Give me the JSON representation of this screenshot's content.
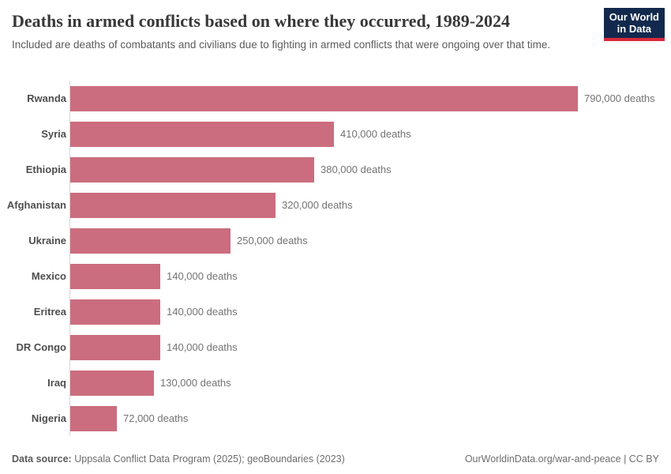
{
  "header": {
    "title": "Deaths in armed conflicts based on where they occurred, 1989-2024",
    "subtitle": "Included are deaths of combatants and civilians due to fighting in armed conflicts that were ongoing over that time."
  },
  "logo": {
    "line1": "Our World",
    "line2": "in Data"
  },
  "chart_data": {
    "type": "bar",
    "orientation": "horizontal",
    "title": "Deaths in armed conflicts based on where they occurred, 1989-2024",
    "categories": [
      "Rwanda",
      "Syria",
      "Ethiopia",
      "Afghanistan",
      "Ukraine",
      "Mexico",
      "Eritrea",
      "DR Congo",
      "Iraq",
      "Nigeria"
    ],
    "values": [
      790000,
      410000,
      380000,
      320000,
      250000,
      140000,
      140000,
      140000,
      130000,
      72000
    ],
    "value_labels": [
      "790,000 deaths",
      "410,000 deaths",
      "380,000 deaths",
      "320,000 deaths",
      "250,000 deaths",
      "140,000 deaths",
      "140,000 deaths",
      "140,000 deaths",
      "130,000 deaths",
      "72,000 deaths"
    ],
    "xlim": [
      0,
      790000
    ],
    "grid": false,
    "legend": false,
    "bar_color": "#cb6d7e"
  },
  "footer": {
    "source_label": "Data source:",
    "source_text": "Uppsala Conflict Data Program (2025); geoBoundaries (2023)",
    "credit": "OurWorldinData.org/war-and-peace | CC BY"
  },
  "colors": {
    "bar": "#cb6d7e",
    "axis_line": "#d6d6d6",
    "logo_bg": "#12294d",
    "logo_red": "#d8283a"
  }
}
